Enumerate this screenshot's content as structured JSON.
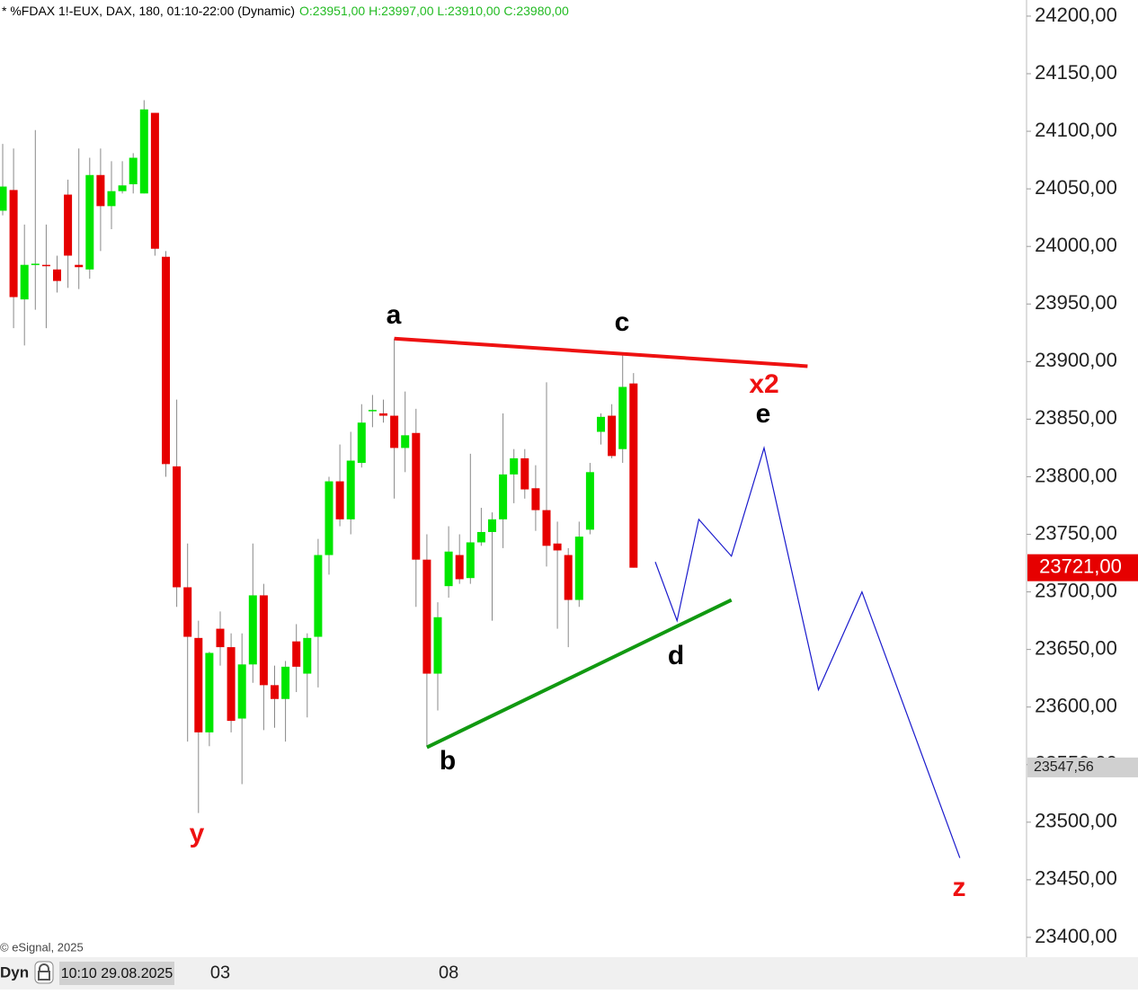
{
  "chart_data": {
    "type": "candlestick",
    "title": "* %FDAX 1!-EUX, DAX, 180, 01:10-22:00 (Dynamic)",
    "ohlc_text": "O:23951,00 H:23997,00 L:23910,00 C:23980,00",
    "categories": [
      null,
      null,
      null,
      null,
      null,
      null,
      null,
      null,
      null,
      null,
      null,
      null,
      null,
      null,
      null,
      null,
      null,
      null,
      null,
      null,
      "03",
      null,
      null,
      null,
      null,
      null,
      null,
      null,
      null,
      null,
      null,
      null,
      null,
      null,
      null,
      null,
      null,
      null,
      null,
      null,
      null,
      "08",
      null,
      null,
      null,
      null,
      null,
      null,
      null,
      null,
      null,
      null,
      null,
      null,
      null,
      null,
      null,
      null,
      null
    ],
    "open": [
      24031,
      24049,
      23954,
      23984,
      23984,
      23980,
      24045,
      23984,
      23980,
      24062,
      24035,
      24048,
      24054,
      24046,
      24116,
      23991,
      23809,
      23704,
      23660,
      23578,
      23668,
      23652,
      23590,
      23637,
      23697,
      23619,
      23607,
      23657,
      23629,
      23661,
      23732,
      23796,
      23763,
      23812,
      23857,
      23855,
      23853,
      23825,
      23838,
      23728,
      23629,
      23705,
      23732,
      23712,
      23743,
      23752,
      23763,
      23802,
      23816,
      23790,
      23771,
      23742,
      23732,
      23693,
      23754,
      23839,
      23853,
      23824,
      23881
    ],
    "high": [
      24089,
      24085,
      24019,
      24101,
      24019,
      23992,
      24058,
      24085,
      24077,
      24085,
      24074,
      24074,
      24081,
      24127,
      24116,
      23996,
      23867,
      23742,
      23675,
      23648,
      23683,
      23664,
      23664,
      23742,
      23707,
      23636,
      23640,
      23672,
      23664,
      23746,
      23800,
      23828,
      23839,
      23863,
      23871,
      23867,
      23920,
      23874,
      23859,
      23750,
      23691,
      23757,
      23750,
      23820,
      23773,
      23769,
      23855,
      23824,
      23824,
      23810,
      23882,
      23761,
      23738,
      23761,
      23812,
      23855,
      23863,
      23906,
      23890
    ],
    "low": [
      24027,
      23929,
      23914,
      23945,
      23929,
      23960,
      23964,
      23963,
      23972,
      23996,
      24015,
      24046,
      24046,
      24046,
      23992,
      23800,
      23687,
      23570,
      23508,
      23566,
      23636,
      23578,
      23533,
      23621,
      23580,
      23582,
      23570,
      23613,
      23591,
      23617,
      23715,
      23757,
      23750,
      23808,
      23843,
      23847,
      23781,
      23804,
      23687,
      23566,
      23597,
      23695,
      23707,
      23707,
      23740,
      23675,
      23738,
      23777,
      23781,
      23753,
      23722,
      23668,
      23652,
      23687,
      23750,
      23828,
      23816,
      23812,
      23721
    ],
    "close": [
      24052,
      23956,
      23984,
      23985,
      23983,
      23970,
      23992,
      23982,
      24062,
      24035,
      24048,
      24053,
      24077,
      24119,
      23998,
      23811,
      23704,
      23661,
      23578,
      23647,
      23652,
      23588,
      23637,
      23697,
      23619,
      23607,
      23635,
      23635,
      23660,
      23732,
      23796,
      23763,
      23814,
      23847,
      23858,
      23853,
      23825,
      23836,
      23728,
      23629,
      23678,
      23735,
      23711,
      23743,
      23752,
      23763,
      23802,
      23816,
      23789,
      23771,
      23740,
      23736,
      23693,
      23748,
      23804,
      23852,
      23818,
      23878,
      23721
    ],
    "up_color": "#00e600",
    "down_color": "#e60000",
    "ylim": [
      23382.8,
      24214
    ],
    "yticks": [
      {
        "value": 23400,
        "label": "23400,00"
      },
      {
        "value": 23450,
        "label": "23450,00"
      },
      {
        "value": 23500,
        "label": "23500,00"
      },
      {
        "value": 23550,
        "label": "23550,00"
      },
      {
        "value": 23600,
        "label": "23600,00"
      },
      {
        "value": 23650,
        "label": "23650,00"
      },
      {
        "value": 23700,
        "label": "23700,00"
      },
      {
        "value": 23750,
        "label": "23750,00"
      },
      {
        "value": 23800,
        "label": "23800,00"
      },
      {
        "value": 23850,
        "label": "23850,00"
      },
      {
        "value": 23900,
        "label": "23900,00"
      },
      {
        "value": 23950,
        "label": "23950,00"
      },
      {
        "value": 24000,
        "label": "24000,00"
      },
      {
        "value": 24050,
        "label": "24050,00"
      },
      {
        "value": 24100,
        "label": "24100,00"
      },
      {
        "value": 24150,
        "label": "24150,00"
      },
      {
        "value": 24200,
        "label": "24200,00"
      }
    ],
    "last_price": {
      "value": 23721,
      "label": "23721,00"
    },
    "cursor_price": {
      "value": 23547.56,
      "label": "23547,56"
    },
    "lines": [
      {
        "color": "#ee1111",
        "x": [
          36,
          74
        ],
        "y": [
          23920,
          23896
        ]
      },
      {
        "color": "#119911",
        "x": [
          39,
          67
        ],
        "y": [
          23565,
          23693
        ]
      },
      {
        "color": "#1a1acc",
        "x": [
          60,
          62,
          64,
          67,
          70,
          75,
          79,
          88
        ],
        "y": [
          23726,
          23675,
          23763,
          23731,
          23825,
          23615,
          23700,
          23469
        ]
      }
    ],
    "labels": [
      "a",
      "b",
      "c",
      "d",
      "e",
      "x2",
      "y",
      "z"
    ],
    "copyright": "© eSignal, 2025",
    "mode": "Dyn",
    "cursor_date": "10:10 29.08.2025"
  }
}
